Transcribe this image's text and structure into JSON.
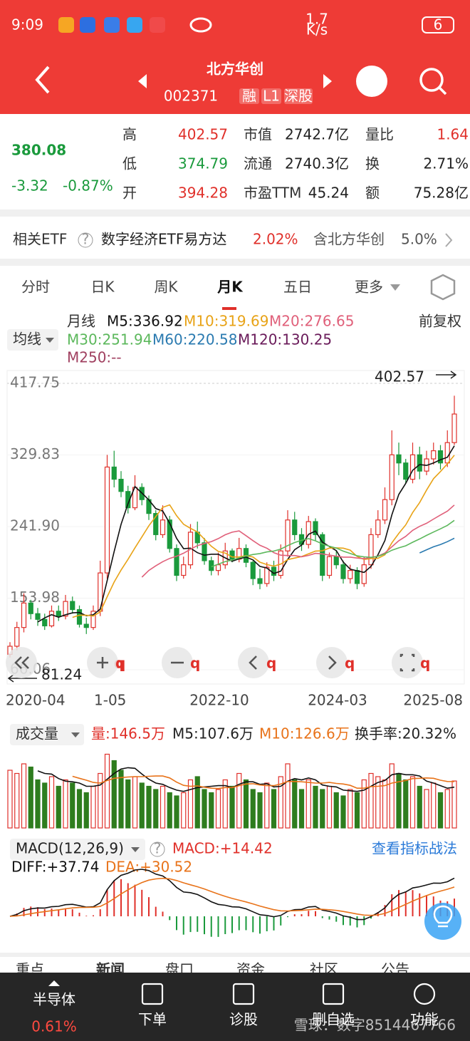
{
  "status_bar": {
    "time": "9:09",
    "speed": "1.7",
    "speed_unit": "K/s",
    "battery": "6"
  },
  "header": {
    "name": "北方华创",
    "code": "002371",
    "tags": [
      "融",
      "L1",
      "深股"
    ]
  },
  "quote": {
    "price": "380.08",
    "change": "-3.32",
    "change_pct": "-0.87%",
    "fields": [
      [
        "高",
        "402.57"
      ],
      [
        "低",
        "374.79"
      ],
      [
        "开",
        "394.28"
      ],
      [
        "市值",
        "2742.7亿"
      ],
      [
        "流通",
        "2740.3亿"
      ],
      [
        "市盈TTM",
        "45.24"
      ],
      [
        "量比",
        "1.64"
      ],
      [
        "换",
        "2.71%"
      ],
      [
        "额",
        "75.28亿"
      ]
    ]
  },
  "etf": {
    "label": "相关ETF",
    "help": "?",
    "name": "数字经济ETF易方达",
    "pct": "2.02%",
    "contain": "含北方华创",
    "contain_pct": "5.0%"
  },
  "tabs": [
    "分时",
    "日K",
    "周K",
    "月K",
    "五日",
    "更多"
  ],
  "ma_legend": {
    "selector": "均线",
    "period": "月线",
    "adjust": "前复权",
    "items": [
      "M5:336.92",
      "M10:319.69",
      "M20:276.65",
      "M30:251.94",
      "M60:220.58",
      "M120:130.25",
      "M250:--"
    ]
  },
  "price_chart": {
    "type": "candlestick",
    "ylim": [
      48.6,
      433.5
    ],
    "yticks": [
      417.75,
      329.83,
      {
        "value": 241.9,
        "label": "241.90"
      },
      153.98,
      66.06
    ],
    "high_label": "402.57",
    "low_label": "81.24",
    "x_labels": [
      "2020-04",
      "1-05",
      "2022-10",
      "2024-03",
      "2025-08"
    ],
    "overlay_marks": [
      "q",
      "q",
      "q",
      "q",
      "q",
      "q"
    ],
    "candles": {
      "open": [
        85,
        95,
        118,
        148,
        135,
        128,
        120,
        138,
        132,
        150,
        140,
        122,
        118,
        138,
        185,
        315,
        300,
        285,
        265,
        290,
        275,
        258,
        232,
        250,
        215,
        182,
        195,
        235,
        222,
        200,
        188,
        195,
        212,
        202,
        215,
        198,
        178,
        172,
        192,
        182,
        212,
        250,
        232,
        220,
        248,
        232,
        182,
        205,
        195,
        178,
        188,
        172,
        195,
        232,
        250,
        275,
        330,
        320,
        300,
        330,
        310,
        325,
        335,
        320,
        345
      ],
      "close": [
        95,
        118,
        148,
        135,
        128,
        120,
        138,
        132,
        150,
        140,
        122,
        118,
        138,
        185,
        315,
        300,
        285,
        265,
        290,
        275,
        258,
        232,
        250,
        215,
        182,
        195,
        235,
        222,
        200,
        188,
        195,
        212,
        202,
        215,
        198,
        178,
        172,
        192,
        182,
        212,
        250,
        232,
        220,
        248,
        232,
        182,
        205,
        195,
        178,
        188,
        172,
        195,
        232,
        250,
        275,
        330,
        320,
        300,
        330,
        310,
        325,
        335,
        320,
        345,
        380.08
      ],
      "high": [
        100,
        125,
        160,
        152,
        142,
        135,
        145,
        145,
        158,
        156,
        145,
        130,
        145,
        200,
        330,
        335,
        310,
        292,
        305,
        295,
        280,
        262,
        268,
        255,
        220,
        205,
        245,
        248,
        228,
        205,
        210,
        222,
        215,
        228,
        220,
        200,
        190,
        198,
        200,
        220,
        262,
        260,
        240,
        255,
        252,
        235,
        210,
        212,
        200,
        195,
        192,
        205,
        240,
        262,
        290,
        360,
        345,
        325,
        345,
        340,
        335,
        345,
        342,
        360,
        402.57
      ],
      "low": [
        81.24,
        90,
        112,
        128,
        120,
        115,
        118,
        126,
        128,
        135,
        118,
        110,
        115,
        132,
        178,
        290,
        278,
        258,
        262,
        268,
        250,
        225,
        228,
        210,
        175,
        178,
        190,
        215,
        195,
        182,
        182,
        190,
        198,
        198,
        192,
        170,
        165,
        168,
        175,
        178,
        205,
        225,
        212,
        215,
        225,
        175,
        178,
        190,
        172,
        172,
        165,
        168,
        190,
        228,
        245,
        268,
        305,
        295,
        295,
        300,
        305,
        318,
        312,
        315,
        342
      ]
    }
  },
  "volume": {
    "selector": "成交量",
    "items": [
      "量:146.5万",
      "M5:107.6万",
      "M10:126.6万",
      "换手率:20.32%"
    ],
    "ylim": [
      0,
      260
    ],
    "values": [
      180,
      170,
      200,
      190,
      150,
      140,
      160,
      130,
      150,
      140,
      120,
      110,
      130,
      170,
      230,
      210,
      180,
      150,
      160,
      140,
      130,
      120,
      130,
      110,
      100,
      110,
      150,
      160,
      120,
      110,
      120,
      150,
      130,
      170,
      150,
      120,
      110,
      140,
      120,
      160,
      200,
      150,
      120,
      150,
      130,
      120,
      130,
      110,
      100,
      120,
      110,
      150,
      170,
      160,
      150,
      200,
      170,
      150,
      160,
      130,
      120,
      140,
      110,
      120,
      146.5
    ]
  },
  "macd": {
    "selector": "MACD(12,26,9)",
    "help": "?",
    "value": "MACD:+14.42",
    "link": "查看指标战法",
    "diff": "DIFF:+37.74",
    "dea": "DEA:+30.52"
  },
  "sub_tabs": [
    "重点",
    "新闻",
    "盘口",
    "资金",
    "社区",
    "公告"
  ],
  "bottom_bar": {
    "sector": "半导体",
    "sector_pct": "0.61%",
    "items": [
      "下单",
      "诊股",
      "删自选",
      "功能"
    ],
    "watermark": "雪球：数字8514467766"
  }
}
